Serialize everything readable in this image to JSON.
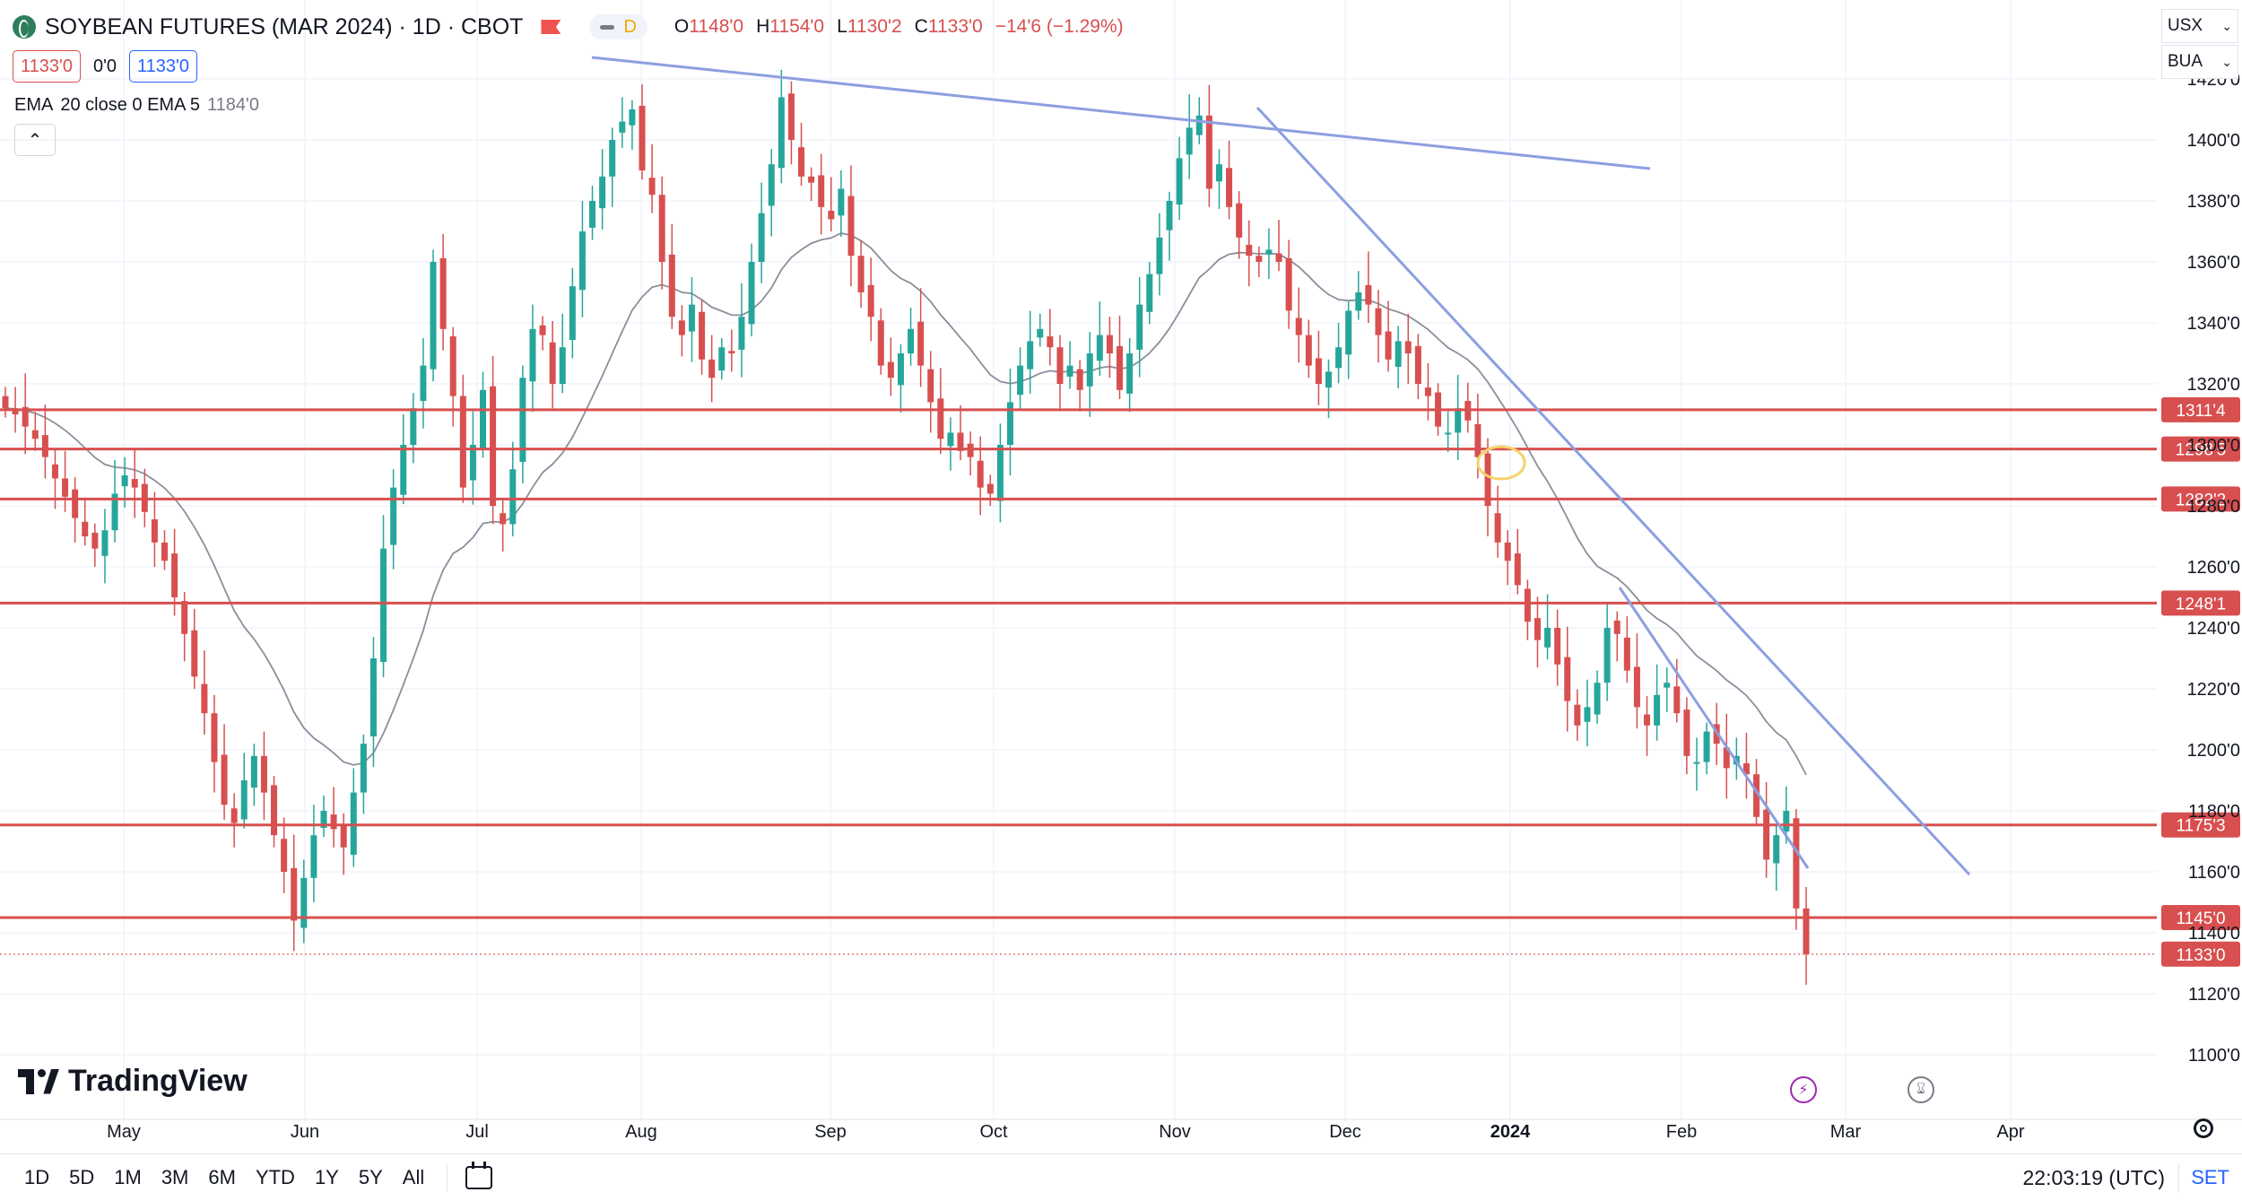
{
  "header": {
    "title": "SOYBEAN FUTURES (MAR 2024) · 1D · CBOT",
    "interval_badge": "D",
    "ohlc": {
      "o_label": "O",
      "o": "1148'0",
      "h_label": "H",
      "h": "1154'0",
      "l_label": "L",
      "l": "1130'2",
      "c_label": "C",
      "c": "1133'0",
      "change": "−14'6 (−1.29%)"
    },
    "bid": "1133'0",
    "spread": "0'0",
    "ask": "1133'0",
    "indicator": {
      "name": "EMA",
      "params": "20 close 0 EMA 5",
      "value": "1184'0"
    }
  },
  "currency": {
    "unit": "USX",
    "multiplier": "BUA"
  },
  "logo_text": "TradingView",
  "time_ranges": [
    "1D",
    "5D",
    "1M",
    "3M",
    "6M",
    "YTD",
    "1Y",
    "5Y",
    "All"
  ],
  "clock": "22:03:19 (UTC)",
  "set_label": "SET",
  "colors": {
    "up": "#26a69a",
    "down": "#d84f4f",
    "trend": "#8c9fe0",
    "ema": "#8a8f9c",
    "level": "#d84f4f"
  },
  "chart_data": {
    "type": "candlestick",
    "symbol": "ZSH2024",
    "price_format": "cents'eighths",
    "y_ticks": [
      "1100'0",
      "1120'0",
      "1140'0",
      "1160'0",
      "1180'0",
      "1200'0",
      "1220'0",
      "1240'0",
      "1260'0",
      "1280'0",
      "1300'0",
      "1320'0",
      "1340'0",
      "1360'0",
      "1380'0",
      "1400'0",
      "1420'0"
    ],
    "x_ticks": [
      "May",
      "Jun",
      "Jul",
      "Aug",
      "Sep",
      "Oct",
      "Nov",
      "Dec",
      "2024",
      "Feb",
      "Mar",
      "Apr"
    ],
    "horizontal_levels": [
      "1311'4",
      "1298'5",
      "1282'2",
      "1248'1",
      "1175'3",
      "1145'0"
    ],
    "last_price": "1133'0",
    "closes": [
      1312,
      1310,
      1306,
      1302,
      1296,
      1289,
      1283,
      1276,
      1270,
      1266,
      1272,
      1284,
      1290,
      1286,
      1278,
      1268,
      1262,
      1250,
      1238,
      1224,
      1212,
      1196,
      1182,
      1176,
      1190,
      1198,
      1186,
      1172,
      1160,
      1144,
      1158,
      1172,
      1180,
      1174,
      1168,
      1186,
      1202,
      1230,
      1266,
      1286,
      1300,
      1312,
      1326,
      1360,
      1338,
      1316,
      1286,
      1300,
      1318,
      1280,
      1274,
      1292,
      1322,
      1338,
      1336,
      1320,
      1332,
      1352,
      1370,
      1380,
      1388,
      1400,
      1406,
      1410,
      1390,
      1382,
      1360,
      1342,
      1336,
      1346,
      1328,
      1322,
      1332,
      1330,
      1342,
      1360,
      1376,
      1392,
      1414,
      1400,
      1388,
      1386,
      1378,
      1374,
      1384,
      1362,
      1350,
      1342,
      1326,
      1322,
      1330,
      1338,
      1326,
      1314,
      1302,
      1304,
      1298,
      1296,
      1286,
      1284,
      1300,
      1314,
      1326,
      1334,
      1338,
      1332,
      1320,
      1326,
      1318,
      1330,
      1336,
      1330,
      1318,
      1330,
      1346,
      1356,
      1368,
      1380,
      1394,
      1404,
      1408,
      1384,
      1392,
      1378,
      1368,
      1362,
      1360,
      1364,
      1360,
      1344,
      1336,
      1326,
      1320,
      1324,
      1332,
      1344,
      1350,
      1346,
      1336,
      1328,
      1334,
      1330,
      1320,
      1316,
      1306,
      1304,
      1312,
      1308,
      1296,
      1280,
      1268,
      1262,
      1254,
      1242,
      1236,
      1240,
      1228,
      1216,
      1208,
      1214,
      1222,
      1240,
      1238,
      1226,
      1214,
      1208,
      1218,
      1222,
      1212,
      1198,
      1196,
      1206,
      1202,
      1194,
      1198,
      1192,
      1178,
      1164,
      1172,
      1180,
      1148,
      1133
    ]
  }
}
